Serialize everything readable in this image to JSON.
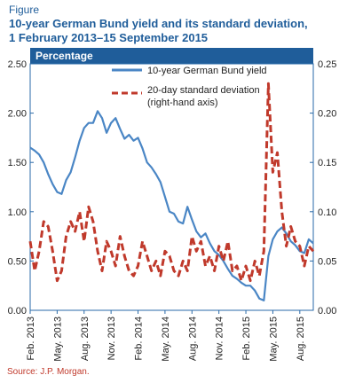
{
  "figure_label": "Figure",
  "title_line1": "10-year German Bund yield and its standard deviation,",
  "title_line2": "1 February 2013–15 September 2015",
  "source": "Source: J.P. Morgan.",
  "chart_data": {
    "type": "line",
    "title": "10-year German Bund yield and its standard deviation, 1 February 2013–15 September 2015",
    "panel_label": "Percentage",
    "x_ticks": [
      "Feb. 2013",
      "May. 2013",
      "Aug. 2013",
      "Nov. 2013",
      "Feb. 2014",
      "May. 2014",
      "Aug. 2014",
      "Nov. 2014",
      "Feb. 2015",
      "May. 2015",
      "Aug. 2015"
    ],
    "x_range": [
      0,
      31.5
    ],
    "y_left": {
      "lim": [
        0,
        2.5
      ],
      "ticks": [
        "0.00",
        "0.50",
        "1.00",
        "1.50",
        "2.00",
        "2.50"
      ]
    },
    "y_right": {
      "lim": [
        0,
        0.25
      ],
      "ticks": [
        "0.00",
        "0.05",
        "0.10",
        "0.15",
        "0.20",
        "0.25"
      ]
    },
    "grid": false,
    "legend_position": "top-right",
    "colors": {
      "yield": "#4a86c5",
      "stdev": "#c0392b",
      "header": "#1f5d9a",
      "axis": "#2a6aa8"
    },
    "series": [
      {
        "name": "10-year German Bund yield",
        "axis": "left",
        "style": "solid",
        "x": [
          0,
          0.5,
          1,
          1.5,
          2,
          2.5,
          3,
          3.5,
          4,
          4.5,
          5,
          5.5,
          6,
          6.5,
          7,
          7.5,
          8,
          8.5,
          9,
          9.5,
          10,
          10.5,
          11,
          11.5,
          12,
          12.5,
          13,
          13.5,
          14,
          14.5,
          15,
          15.5,
          16,
          16.5,
          17,
          17.5,
          18,
          18.5,
          19,
          19.5,
          20,
          20.5,
          21,
          21.5,
          22,
          22.5,
          23,
          23.5,
          24,
          24.5,
          25,
          25.5,
          26,
          26.5,
          27,
          27.5,
          28,
          28.5,
          29,
          29.5,
          30,
          30.5,
          31,
          31.5
        ],
        "y": [
          1.65,
          1.62,
          1.58,
          1.5,
          1.38,
          1.28,
          1.2,
          1.18,
          1.32,
          1.4,
          1.55,
          1.72,
          1.85,
          1.9,
          1.9,
          2.02,
          1.95,
          1.8,
          1.9,
          1.95,
          1.84,
          1.74,
          1.78,
          1.72,
          1.75,
          1.64,
          1.5,
          1.45,
          1.38,
          1.3,
          1.15,
          1.0,
          0.98,
          0.9,
          0.88,
          1.05,
          0.92,
          0.8,
          0.74,
          0.78,
          0.68,
          0.6,
          0.56,
          0.5,
          0.42,
          0.35,
          0.32,
          0.28,
          0.25,
          0.25,
          0.2,
          0.12,
          0.1,
          0.55,
          0.72,
          0.8,
          0.84,
          0.78,
          0.7,
          0.66,
          0.6,
          0.58,
          0.72,
          0.68
        ]
      },
      {
        "name": "20-day standard deviation (right-hand axis)",
        "axis": "right",
        "style": "dashed",
        "x": [
          0,
          0.5,
          1,
          1.5,
          2,
          2.5,
          3,
          3.5,
          4,
          4.5,
          5,
          5.5,
          6,
          6.5,
          7,
          7.5,
          8,
          8.5,
          9,
          9.5,
          10,
          10.5,
          11,
          11.5,
          12,
          12.5,
          13,
          13.5,
          14,
          14.5,
          15,
          15.5,
          16,
          16.5,
          17,
          17.5,
          18,
          18.5,
          19,
          19.5,
          20,
          20.5,
          21,
          21.5,
          22,
          22.5,
          23,
          23.5,
          24,
          24.5,
          25,
          25.5,
          26,
          26.5,
          27,
          27.5,
          28,
          28.5,
          29,
          29.5,
          30,
          30.5,
          31,
          31.5
        ],
        "y": [
          0.07,
          0.04,
          0.06,
          0.09,
          0.085,
          0.06,
          0.03,
          0.04,
          0.075,
          0.09,
          0.08,
          0.1,
          0.07,
          0.105,
          0.09,
          0.06,
          0.04,
          0.07,
          0.06,
          0.045,
          0.075,
          0.055,
          0.04,
          0.035,
          0.045,
          0.07,
          0.055,
          0.04,
          0.05,
          0.035,
          0.06,
          0.055,
          0.04,
          0.035,
          0.05,
          0.04,
          0.075,
          0.06,
          0.07,
          0.045,
          0.055,
          0.04,
          0.065,
          0.05,
          0.07,
          0.04,
          0.045,
          0.03,
          0.045,
          0.03,
          0.05,
          0.035,
          0.06,
          0.23,
          0.14,
          0.16,
          0.1,
          0.065,
          0.085,
          0.07,
          0.065,
          0.045,
          0.065,
          0.06
        ]
      }
    ]
  }
}
